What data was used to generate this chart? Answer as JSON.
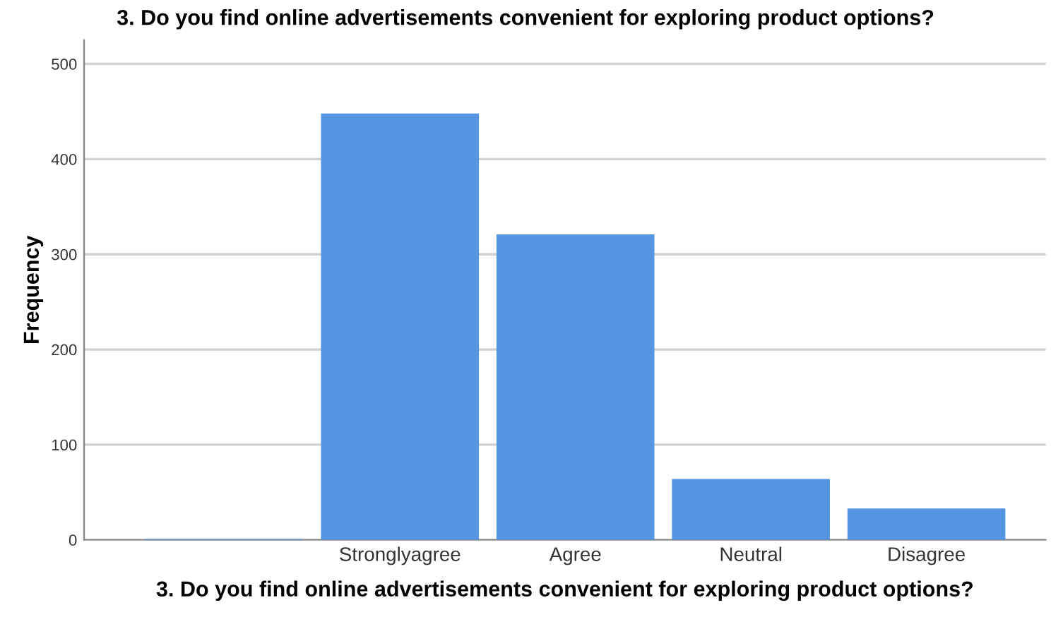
{
  "chart_data": {
    "type": "bar",
    "title": "3. Do you find online advertisements convenient for exploring product options?",
    "xlabel": "3. Do you find online advertisements convenient for exploring product options?",
    "ylabel": "Frequency",
    "categories": [
      null,
      "Stronglyagree",
      "Agree",
      "Neutral",
      "Disagree"
    ],
    "values": [
      1,
      448,
      321,
      64,
      33
    ],
    "color": "#5596e2",
    "ylim": [
      0,
      525
    ],
    "yticks": [
      0,
      100,
      200,
      300,
      400,
      500
    ],
    "grid": "y"
  }
}
